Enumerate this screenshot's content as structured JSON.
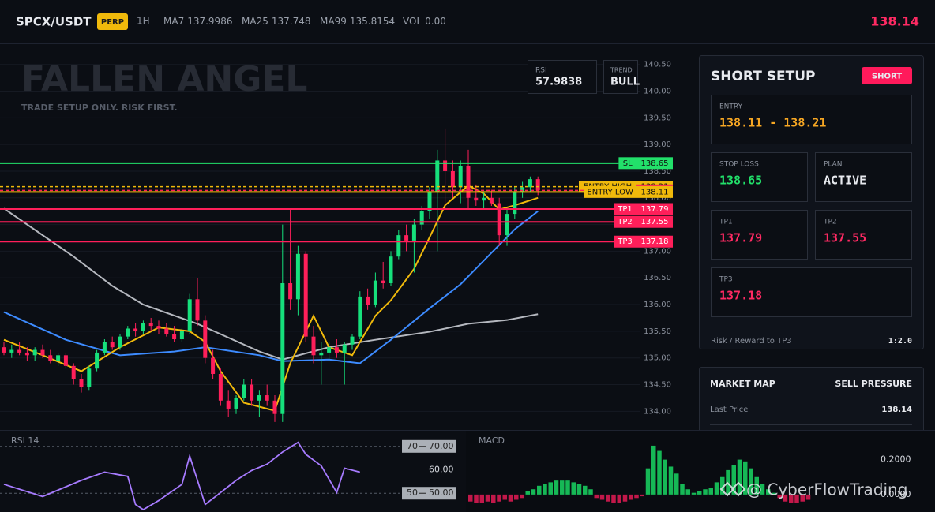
{
  "header": {
    "symbol": "SPCX/USDT",
    "badge": "PERP",
    "interval": "1H",
    "indicators": [
      {
        "label": "MA7",
        "value": "137.9986"
      },
      {
        "label": "MA25",
        "value": "137.748"
      },
      {
        "label": "MA99",
        "value": "135.8154"
      },
      {
        "label": "VOL",
        "value": "0.00"
      }
    ],
    "price": "138.14"
  },
  "watermark": {
    "title": "FALLEN ANGEL",
    "subtitle": "TRADE SETUP ONLY. RISK FIRST."
  },
  "info": [
    {
      "label": "RSI",
      "value": "57.9838"
    },
    {
      "label": "TREND",
      "value": "BULL"
    }
  ],
  "setup": {
    "title": "SHORT SETUP",
    "badge": "SHORT",
    "entry": {
      "label": "ENTRY",
      "value": "138.11 - 138.21"
    },
    "stop_loss": {
      "label": "STOP LOSS",
      "value": "138.65"
    },
    "plan": {
      "label": "PLAN",
      "value": "ACTIVE"
    },
    "tp1": {
      "label": "TP1",
      "value": "137.79"
    },
    "tp2": {
      "label": "TP2",
      "value": "137.55"
    },
    "tp3": {
      "label": "TP3",
      "value": "137.18"
    },
    "rr_label": "Risk / Reward to TP3",
    "rr_value": "1:2.0"
  },
  "market_map": {
    "title": "MARKET MAP",
    "status": "SELL PRESSURE",
    "last_price_label": "Last Price",
    "last_price": "138.14"
  },
  "overlay_watermark": "@ CyberFlowTrading",
  "chart_data": [
    {
      "type": "candlestick",
      "up_color": "#16e07c",
      "down_color": "#ff1f5a",
      "grid": true,
      "open": [
        135.2,
        135.1,
        135.15,
        135.1,
        135.05,
        135.15,
        135.05,
        134.95,
        135.05,
        134.85,
        134.6,
        134.45,
        134.8,
        135.1,
        135.3,
        135.2,
        135.4,
        135.55,
        135.5,
        135.65,
        135.6,
        135.55,
        135.45,
        135.35,
        135.5,
        136.1,
        135.7,
        135.0,
        134.7,
        134.2,
        134.05,
        134.25,
        134.5,
        134.2,
        134.3,
        134.2,
        133.95,
        136.4,
        136.1,
        136.95,
        135.4,
        135.05,
        135.1,
        135.2,
        135.1,
        135.25,
        135.4,
        136.15,
        136.0,
        136.45,
        136.4,
        136.9,
        137.3,
        137.2,
        137.5,
        137.75,
        138.1,
        138.7,
        138.5,
        138.2,
        138.6,
        138.0,
        137.95,
        138.0,
        137.9,
        137.3,
        137.7,
        138.1,
        138.2,
        138.35
      ],
      "high": [
        135.3,
        135.25,
        135.3,
        135.2,
        135.2,
        135.25,
        135.15,
        135.1,
        135.1,
        134.9,
        134.7,
        134.85,
        135.15,
        135.35,
        135.4,
        135.45,
        135.6,
        135.65,
        135.7,
        135.75,
        135.7,
        135.65,
        135.6,
        135.55,
        136.2,
        136.5,
        135.8,
        135.15,
        134.8,
        134.4,
        134.3,
        134.6,
        134.6,
        134.4,
        134.5,
        134.3,
        137.5,
        137.8,
        137.1,
        137.0,
        135.6,
        135.3,
        135.3,
        135.35,
        135.3,
        135.45,
        136.25,
        136.3,
        136.6,
        136.8,
        137.0,
        137.4,
        137.5,
        137.6,
        137.85,
        138.2,
        138.9,
        139.3,
        138.7,
        138.7,
        138.9,
        138.25,
        138.1,
        138.15,
        138.0,
        137.8,
        138.2,
        138.3,
        138.4,
        138.4
      ],
      "low": [
        135.05,
        135.0,
        135.05,
        134.95,
        134.95,
        135.0,
        134.9,
        134.85,
        134.8,
        134.5,
        134.35,
        134.4,
        134.75,
        135.05,
        135.15,
        135.15,
        135.35,
        135.4,
        135.45,
        135.5,
        135.45,
        135.4,
        135.3,
        135.3,
        135.45,
        135.6,
        134.9,
        134.6,
        134.1,
        133.9,
        133.95,
        134.2,
        134.1,
        133.9,
        134.1,
        133.8,
        133.8,
        135.9,
        135.8,
        135.3,
        134.9,
        134.5,
        134.95,
        135.0,
        134.5,
        135.15,
        135.35,
        135.9,
        135.95,
        136.3,
        136.35,
        136.85,
        137.0,
        136.6,
        137.4,
        137.6,
        137.0,
        137.8,
        138.0,
        137.9,
        137.8,
        137.85,
        137.8,
        137.85,
        137.1,
        137.1,
        137.6,
        138.0,
        138.1,
        138.05
      ],
      "close": [
        135.1,
        135.15,
        135.1,
        135.05,
        135.15,
        135.05,
        134.95,
        135.05,
        134.85,
        134.6,
        134.45,
        134.8,
        135.1,
        135.3,
        135.2,
        135.4,
        135.55,
        135.5,
        135.65,
        135.6,
        135.55,
        135.45,
        135.35,
        135.5,
        136.1,
        135.7,
        135.0,
        134.7,
        134.2,
        134.05,
        134.25,
        134.5,
        134.2,
        134.3,
        134.2,
        133.95,
        136.4,
        136.1,
        136.95,
        135.4,
        135.05,
        135.1,
        135.2,
        135.1,
        135.25,
        135.4,
        136.15,
        136.0,
        136.45,
        136.4,
        136.9,
        137.3,
        137.2,
        137.5,
        137.75,
        138.1,
        138.7,
        138.5,
        138.2,
        138.6,
        138.0,
        137.95,
        138.0,
        137.9,
        137.3,
        137.7,
        138.1,
        138.2,
        138.35,
        138.14
      ],
      "ylim": [
        133.65,
        140.88
      ],
      "yticks": [
        {
          "value": 140.5,
          "label": "140.50"
        },
        {
          "value": 140,
          "label": "140.00"
        },
        {
          "value": 139.5,
          "label": "139.50"
        },
        {
          "value": 139,
          "label": "139.00"
        },
        {
          "value": 138.5,
          "label": "138.50"
        },
        {
          "value": 138,
          "label": "138.00"
        },
        {
          "value": 137.5,
          "label": "137.50"
        },
        {
          "value": 137,
          "label": "137.00"
        },
        {
          "value": 136.5,
          "label": "136.50"
        },
        {
          "value": 136,
          "label": "136.00"
        },
        {
          "value": 135.5,
          "label": "135.50"
        },
        {
          "value": 135,
          "label": "135.00"
        },
        {
          "value": 134.5,
          "label": "134.50"
        },
        {
          "value": 134,
          "label": "134.00"
        }
      ],
      "lines": [
        {
          "color": "#b5b8bf",
          "x": [
            0,
            5,
            9,
            14,
            18,
            25,
            33,
            36,
            42,
            48,
            55,
            60,
            65,
            69
          ],
          "values": [
            137.8,
            137.3,
            136.9,
            136.35,
            136.0,
            135.64,
            135.12,
            134.97,
            135.2,
            135.34,
            135.49,
            135.64,
            135.71,
            135.82
          ]
        },
        {
          "color": "#3d8bff",
          "x": [
            0,
            8,
            15,
            22,
            26,
            33,
            36,
            42,
            46,
            50,
            55,
            59,
            63,
            66,
            69
          ],
          "values": [
            135.86,
            135.34,
            135.05,
            135.12,
            135.2,
            135.05,
            134.94,
            134.97,
            134.9,
            135.34,
            135.93,
            136.38,
            136.97,
            137.41,
            137.75
          ]
        },
        {
          "color": "#f0b90b",
          "x": [
            0,
            5,
            10,
            15,
            20,
            24,
            26,
            28,
            31,
            35,
            37,
            40,
            42,
            45,
            48,
            50,
            53,
            55,
            57,
            60,
            62,
            64,
            66,
            69
          ],
          "values": [
            135.34,
            135.05,
            134.75,
            135.2,
            135.57,
            135.5,
            135.3,
            134.75,
            134.16,
            134.01,
            134.9,
            135.79,
            135.2,
            135.05,
            135.79,
            136.08,
            136.67,
            137.26,
            137.86,
            138.23,
            138.08,
            137.78,
            137.86,
            138.0
          ]
        }
      ],
      "levels": [
        {
          "name": "SL",
          "value": 138.65,
          "color": "#22e06a"
        },
        {
          "name": "ENTRY HIGH",
          "value": 138.21,
          "color": "#f0b90b",
          "dash": true
        },
        {
          "value": 138.14,
          "color": "#ff1f5a",
          "dash": true
        },
        {
          "name": "ENTRY LOW",
          "value": 138.11,
          "color": "#f0b90b"
        },
        {
          "name": "TP1",
          "value": 137.79,
          "color": "#ff1f5a"
        },
        {
          "name": "TP2",
          "value": 137.55,
          "color": "#ff1f5a"
        },
        {
          "name": "TP3",
          "value": 137.18,
          "color": "#ff1f5a"
        }
      ]
    },
    {
      "type": "line",
      "title": "RSI 14",
      "color": "#a77bff",
      "x": [
        0,
        5,
        10,
        13,
        16,
        17,
        18,
        20,
        23,
        24,
        26,
        28,
        30,
        32,
        34,
        36,
        38,
        39,
        41,
        43,
        44,
        46
      ],
      "values": [
        53.8,
        48.6,
        55.5,
        59.0,
        57.2,
        45.2,
        43,
        46.9,
        53.8,
        65.9,
        45.2,
        50.3,
        55.5,
        59.7,
        62.4,
        67.6,
        71.7,
        66.6,
        61.7,
        50.3,
        60.7,
        59.0
      ],
      "ylim": [
        42,
        77
      ],
      "levels": [
        70,
        50
      ],
      "yticks": [
        {
          "value": 70,
          "label": "70.00"
        },
        {
          "value": 60,
          "label": "60.00"
        },
        {
          "value": 50,
          "label": "50.00"
        }
      ]
    },
    {
      "type": "bar",
      "title": "MACD",
      "up_color": "#16b856",
      "down_color": "#c2184a",
      "values": [
        -0.04,
        -0.05,
        -0.05,
        -0.04,
        -0.05,
        -0.04,
        -0.03,
        -0.04,
        -0.03,
        -0.02,
        0.02,
        0.03,
        0.05,
        0.06,
        0.07,
        0.08,
        0.08,
        0.08,
        0.07,
        0.06,
        0.05,
        0.03,
        -0.02,
        -0.03,
        -0.04,
        -0.05,
        -0.05,
        -0.04,
        -0.03,
        -0.02,
        -0.01,
        0.15,
        0.28,
        0.25,
        0.2,
        0.16,
        0.12,
        0.06,
        0.03,
        0.01,
        0.02,
        0.03,
        0.04,
        0.07,
        0.1,
        0.14,
        0.17,
        0.2,
        0.19,
        0.15,
        0.1,
        0.06,
        0.03,
        0.01,
        -0.02,
        -0.04,
        -0.05,
        -0.05,
        -0.04,
        -0.03
      ],
      "ylim": [
        -0.1,
        0.37
      ],
      "yticks": [
        {
          "value": 0.2,
          "label": "0.2000"
        },
        {
          "value": 0,
          "label": "0.0000"
        }
      ]
    }
  ]
}
